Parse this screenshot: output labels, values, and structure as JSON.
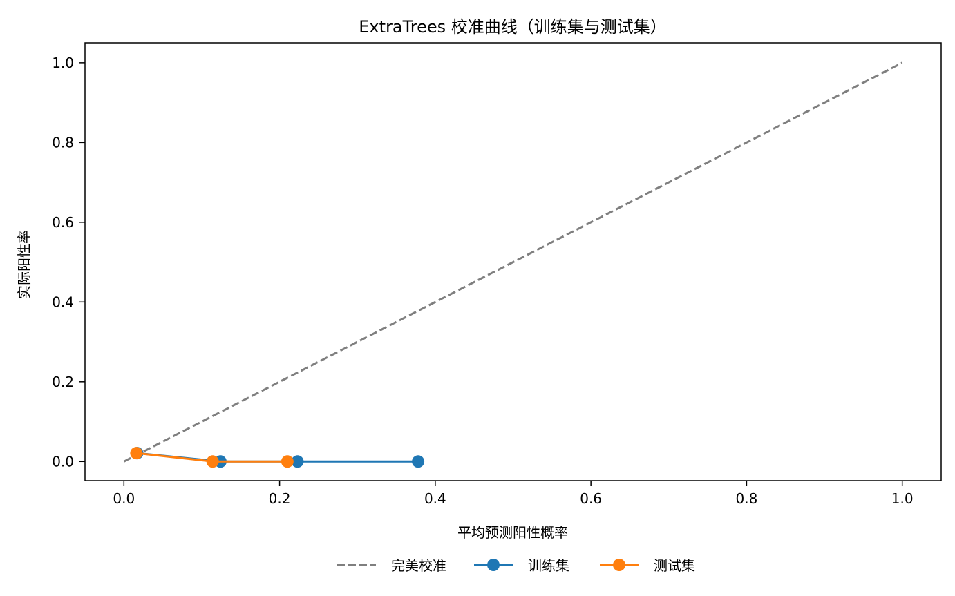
{
  "chart_data": {
    "type": "line",
    "title": "ExtraTrees 校准曲线（训练集与测试集）",
    "xlabel": "平均预测阳性概率",
    "ylabel": "实际阳性率",
    "xlim": [
      -0.05,
      1.05
    ],
    "ylim": [
      -0.048,
      1.05
    ],
    "xticks": [
      0.0,
      0.2,
      0.4,
      0.6,
      0.8,
      1.0
    ],
    "yticks": [
      0.0,
      0.2,
      0.4,
      0.6,
      0.8,
      1.0
    ],
    "xtick_labels": [
      "0.0",
      "0.2",
      "0.4",
      "0.6",
      "0.8",
      "1.0"
    ],
    "ytick_labels": [
      "0.0",
      "0.2",
      "0.4",
      "0.6",
      "0.8",
      "1.0"
    ],
    "grid": false,
    "legend_placement": "bottom-center",
    "series": [
      {
        "name": "完美校准",
        "style": "dashed",
        "marker": "none",
        "color": "#7f7f7f",
        "x": [
          0.0,
          1.0
        ],
        "y": [
          0.0,
          1.0
        ]
      },
      {
        "name": "训练集",
        "style": "solid",
        "marker": "circle",
        "color": "#1f77b4",
        "x": [
          0.017,
          0.124,
          0.223,
          0.378
        ],
        "y": [
          0.021,
          0.0,
          0.0,
          0.0
        ]
      },
      {
        "name": "测试集",
        "style": "solid",
        "marker": "circle",
        "color": "#ff7f0e",
        "x": [
          0.016,
          0.114,
          0.21
        ],
        "y": [
          0.021,
          0.0,
          0.0
        ]
      }
    ]
  }
}
